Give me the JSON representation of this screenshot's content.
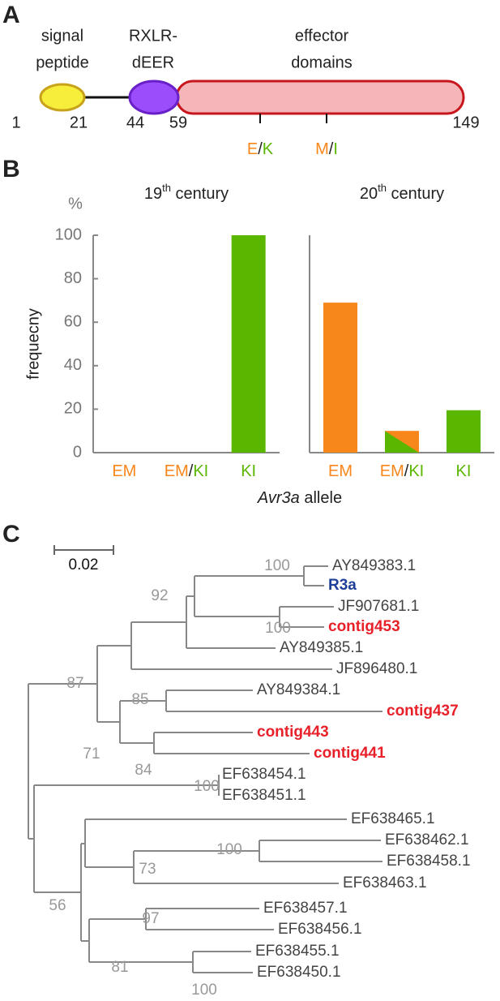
{
  "panel_a": {
    "label": "A",
    "domains": [
      {
        "line1": "signal",
        "line2": "peptide"
      },
      {
        "line1": "RXLR-",
        "line2": "dEER"
      },
      {
        "line1": "effector",
        "line2": "domains"
      }
    ],
    "positions": [
      "1",
      "21",
      "44",
      "59",
      "149"
    ],
    "mutations": [
      {
        "label": "E/K",
        "colors": [
          "#f7861b",
          "#5bb600"
        ]
      },
      {
        "label": "M/I",
        "colors": [
          "#f7861b",
          "#5bb600"
        ]
      }
    ]
  },
  "panel_b": {
    "label": "B",
    "xlabel": "Avr3a allele"
  },
  "chart_data": [
    {
      "type": "bar",
      "title": "19th century",
      "ylabel": "frequecny",
      "unit": "%",
      "categories": [
        "EM",
        "EM/KI",
        "KI"
      ],
      "values": [
        0,
        0,
        100
      ],
      "colors": [
        [
          "#f7861b"
        ],
        [
          "#f7861b",
          "#5bb600"
        ],
        [
          "#5bb600"
        ]
      ],
      "ylim": [
        0,
        100
      ],
      "yticks": [
        0,
        20,
        40,
        60,
        80,
        100
      ]
    },
    {
      "type": "bar",
      "title": "20th century",
      "categories": [
        "EM",
        "EM/KI",
        "KI"
      ],
      "values": [
        69,
        10,
        19.5
      ],
      "colors": [
        [
          "#f7861b"
        ],
        [
          "#f7861b",
          "#5bb600"
        ],
        [
          "#5bb600"
        ]
      ],
      "ylim": [
        0,
        100
      ]
    }
  ],
  "panel_c": {
    "label": "C",
    "scale": "0.02",
    "leaves": [
      {
        "label": "AY849383.1",
        "color": "#444444"
      },
      {
        "label": "R3a",
        "color": "#1f3f99"
      },
      {
        "label": "JF907681.1",
        "color": "#444444"
      },
      {
        "label": "contig453",
        "color": "#e8202a"
      },
      {
        "label": "AY849385.1",
        "color": "#444444"
      },
      {
        "label": "JF896480.1",
        "color": "#444444"
      },
      {
        "label": "AY849384.1",
        "color": "#444444"
      },
      {
        "label": "contig437",
        "color": "#e8202a"
      },
      {
        "label": "contig443",
        "color": "#e8202a"
      },
      {
        "label": "contig441",
        "color": "#e8202a"
      },
      {
        "label": "EF638454.1",
        "color": "#444444"
      },
      {
        "label": "EF638451.1",
        "color": "#444444"
      },
      {
        "label": "EF638465.1",
        "color": "#444444"
      },
      {
        "label": "EF638462.1",
        "color": "#444444"
      },
      {
        "label": "EF638458.1",
        "color": "#444444"
      },
      {
        "label": "EF638463.1",
        "color": "#444444"
      },
      {
        "label": "EF638457.1",
        "color": "#444444"
      },
      {
        "label": "EF638456.1",
        "color": "#444444"
      },
      {
        "label": "EF638455.1",
        "color": "#444444"
      },
      {
        "label": "EF638450.1",
        "color": "#444444"
      }
    ],
    "bootstraps": [
      "100",
      "92",
      "100",
      "87",
      "85",
      "71",
      "84",
      "100",
      "73",
      "100",
      "56",
      "97",
      "81",
      "100"
    ]
  }
}
